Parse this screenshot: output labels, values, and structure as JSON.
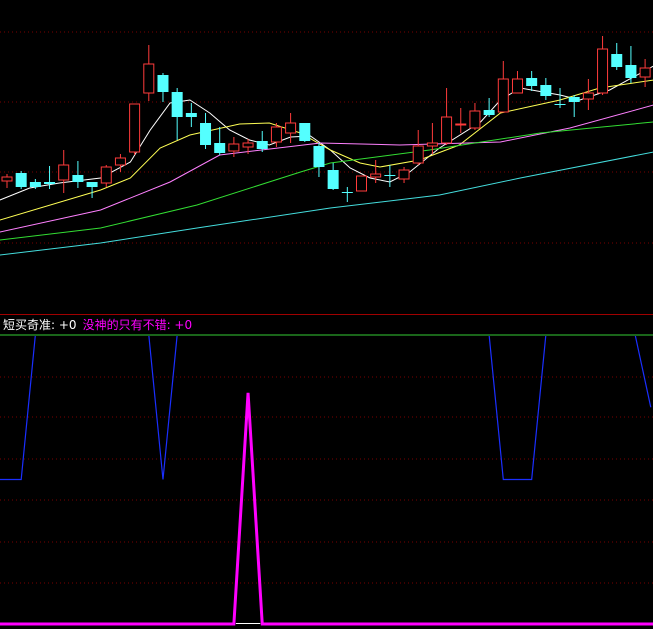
{
  "chart_data": [
    {
      "type": "candlestick",
      "title": "",
      "grid": true,
      "colors": {
        "up": "#ff3b3b",
        "down": "#54ffff",
        "grid": "#7a0000",
        "ma": [
          "#ffffff",
          "#ffff55",
          "#ff80ff",
          "#33dd33",
          "#44dddd"
        ]
      },
      "candles_ohlc": [
        [
          119,
          126,
          112,
          123
        ],
        [
          127,
          129,
          111,
          113
        ],
        [
          118,
          121,
          111,
          113
        ],
        [
          118,
          134,
          111,
          116
        ],
        [
          120,
          150,
          107,
          135
        ],
        [
          125,
          139,
          112,
          118
        ],
        [
          118,
          118,
          102,
          113
        ],
        [
          117,
          135,
          113,
          133
        ],
        [
          135,
          146,
          128,
          142
        ],
        [
          148,
          196,
          145,
          196
        ],
        [
          207,
          255,
          199,
          236
        ],
        [
          225,
          227,
          198,
          208
        ],
        [
          208,
          212,
          160,
          183
        ],
        [
          187,
          197,
          173,
          183
        ],
        [
          177,
          187,
          151,
          155
        ],
        [
          157,
          173,
          145,
          147
        ],
        [
          149,
          163,
          143,
          156
        ],
        [
          153,
          161,
          146,
          157
        ],
        [
          159,
          169,
          148,
          151
        ],
        [
          158,
          177,
          153,
          173
        ],
        [
          167,
          187,
          157,
          177
        ],
        [
          177,
          177,
          158,
          159
        ],
        [
          154,
          157,
          123,
          133
        ],
        [
          130,
          137,
          110,
          111
        ],
        [
          108,
          113,
          98,
          108
        ],
        [
          109,
          124,
          109,
          124
        ],
        [
          123,
          140,
          117,
          126
        ],
        [
          125,
          135,
          113,
          125
        ],
        [
          121,
          133,
          117,
          130
        ],
        [
          137,
          170,
          135,
          154
        ],
        [
          154,
          177,
          146,
          157
        ],
        [
          157,
          212,
          155,
          183
        ],
        [
          175,
          192,
          167,
          176
        ],
        [
          172,
          197,
          170,
          189
        ],
        [
          190,
          202,
          183,
          185
        ],
        [
          188,
          239,
          188,
          221
        ],
        [
          207,
          229,
          207,
          221
        ],
        [
          222,
          229,
          209,
          214
        ],
        [
          215,
          222,
          200,
          204
        ],
        [
          196,
          212,
          192,
          196
        ],
        [
          203,
          205,
          183,
          198
        ],
        [
          201,
          221,
          190,
          207
        ],
        [
          207,
          264,
          205,
          251
        ],
        [
          246,
          257,
          230,
          233
        ],
        [
          235,
          254,
          217,
          222
        ],
        [
          223,
          241,
          213,
          232
        ]
      ],
      "moving_averages": [
        {
          "color": "#ffffff",
          "points": [
            [
              -0.5,
              100
            ],
            [
              1.6,
              112
            ],
            [
              3.7,
              117
            ],
            [
              6.6,
              122
            ],
            [
              8.7,
              138
            ],
            [
              10.1,
              170
            ],
            [
              11.5,
              197
            ],
            [
              12.9,
              200
            ],
            [
              14.3,
              187
            ],
            [
              15.7,
              170
            ],
            [
              17.1,
              160
            ],
            [
              18.5,
              155
            ],
            [
              20,
              163
            ],
            [
              21.4,
              164
            ],
            [
              22.8,
              150
            ],
            [
              24.2,
              132
            ],
            [
              25.6,
              122
            ],
            [
              27,
              118
            ],
            [
              28.4,
              128
            ],
            [
              30.5,
              152
            ],
            [
              33.4,
              178
            ],
            [
              34.8,
              200
            ],
            [
              36.2,
              212
            ],
            [
              39,
              205
            ],
            [
              40.4,
              200
            ],
            [
              42.5,
              210
            ],
            [
              45.6,
              234
            ]
          ]
        },
        {
          "color": "#ffff55",
          "points": [
            [
              -0.5,
              80
            ],
            [
              6.6,
              110
            ],
            [
              8.7,
              122
            ],
            [
              10.8,
              152
            ],
            [
              12.9,
              165
            ],
            [
              16.4,
              176
            ],
            [
              18.5,
              177
            ],
            [
              20.7,
              167
            ],
            [
              22.8,
              150
            ],
            [
              24.9,
              137
            ],
            [
              26.3,
              133
            ],
            [
              29.1,
              140
            ],
            [
              31.9,
              155
            ],
            [
              34.8,
              187
            ],
            [
              39,
              200
            ],
            [
              41.8,
              212
            ],
            [
              45.6,
              220
            ]
          ]
        },
        {
          "color": "#ff80ff",
          "points": [
            [
              -0.5,
              68
            ],
            [
              6.6,
              90
            ],
            [
              11.5,
              118
            ],
            [
              15,
              145
            ],
            [
              22.1,
              157
            ],
            [
              27.7,
              155
            ],
            [
              34.8,
              158
            ],
            [
              39.7,
              172
            ],
            [
              45.6,
              195
            ]
          ]
        },
        {
          "color": "#33dd33",
          "points": [
            [
              -0.5,
              60
            ],
            [
              6.6,
              72
            ],
            [
              13.4,
              95
            ],
            [
              20.7,
              128
            ],
            [
              22.8,
              137
            ],
            [
              29.8,
              150
            ],
            [
              37.6,
              167
            ],
            [
              45.6,
              178
            ]
          ]
        },
        {
          "color": "#44dddd",
          "points": [
            [
              -0.5,
              45
            ],
            [
              6.6,
              57
            ],
            [
              13.4,
              72
            ],
            [
              22.8,
              92
            ],
            [
              30.5,
              105
            ],
            [
              36.2,
              122
            ],
            [
              45.6,
              148
            ]
          ]
        }
      ]
    },
    {
      "type": "line",
      "legend": [
        {
          "name": "短买奇准",
          "value": "+0",
          "color": "#ffffff"
        },
        {
          "name": "没神的只有不错",
          "value": "+0",
          "color": "#ff00ff"
        }
      ],
      "reference_level": 100,
      "reference_color": "#33cc33",
      "series": [
        {
          "color": "#1a2fff",
          "points": [
            [
              -0.5,
              50
            ],
            [
              1,
              50
            ],
            [
              2,
              100
            ],
            [
              10,
              100
            ],
            [
              11,
              50
            ],
            [
              12,
              100
            ],
            [
              34,
              100
            ],
            [
              35,
              50
            ],
            [
              37,
              50
            ],
            [
              38,
              100
            ],
            [
              44.3,
              100
            ],
            [
              45.4,
              75
            ]
          ]
        },
        {
          "color": "#ff00ff",
          "points": [
            [
              -0.5,
              0
            ],
            [
              16,
              0
            ],
            [
              17,
              80
            ],
            [
              18,
              0
            ],
            [
              45.6,
              0
            ]
          ]
        }
      ]
    }
  ],
  "legend_text": {
    "a_label": "短买奇准: +0",
    "b_label": "没神的只有不错: +0"
  }
}
